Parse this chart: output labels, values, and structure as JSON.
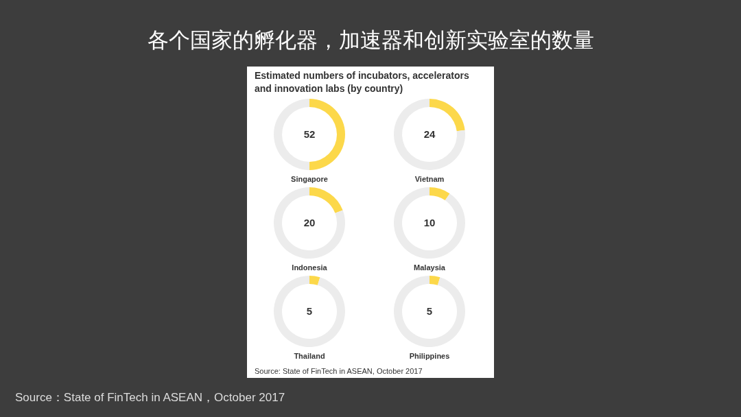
{
  "chart_data": [
    {
      "type": "donut",
      "title": "各个国家的孵化器，加速器和创新实验室的数量",
      "subtitle": "Estimated numbers of incubators, accelerators and innovation labs (by country)",
      "xlabel": "Singapore",
      "categories": [
        null,
        null
      ],
      "values": [
        52,
        52
      ],
      "value_labels": [
        "52",
        null
      ],
      "colors": [
        "#fcd84a",
        "#ececec"
      ]
    },
    {
      "type": "donut",
      "xlabel": "Vietnam",
      "categories": [
        null,
        null
      ],
      "values": [
        24,
        80
      ],
      "value_labels": [
        "24",
        null
      ],
      "colors": [
        "#fcd84a",
        "#ececec"
      ]
    },
    {
      "type": "donut",
      "xlabel": "Indonesia",
      "categories": [
        null,
        null
      ],
      "values": [
        20,
        84
      ],
      "value_labels": [
        "20",
        null
      ],
      "colors": [
        "#fcd84a",
        "#ececec"
      ]
    },
    {
      "type": "donut",
      "xlabel": "Malaysia",
      "categories": [
        null,
        null
      ],
      "values": [
        10,
        94
      ],
      "value_labels": [
        "10",
        null
      ],
      "colors": [
        "#fcd84a",
        "#ececec"
      ]
    },
    {
      "type": "donut",
      "xlabel": "Thailand",
      "categories": [
        null,
        null
      ],
      "values": [
        5,
        99
      ],
      "value_labels": [
        "5",
        null
      ],
      "colors": [
        "#fcd84a",
        "#ececec"
      ]
    },
    {
      "type": "donut",
      "xlabel": "Philippines",
      "categories": [
        null,
        null
      ],
      "values": [
        5,
        99
      ],
      "value_labels": [
        "5",
        null
      ],
      "colors": [
        "#fcd84a",
        "#ececec"
      ],
      "annotations": [
        "Source: State of FinTech in ASEAN, October 2017",
        "Source：State of FinTech in ASEAN，October 2017"
      ]
    }
  ]
}
